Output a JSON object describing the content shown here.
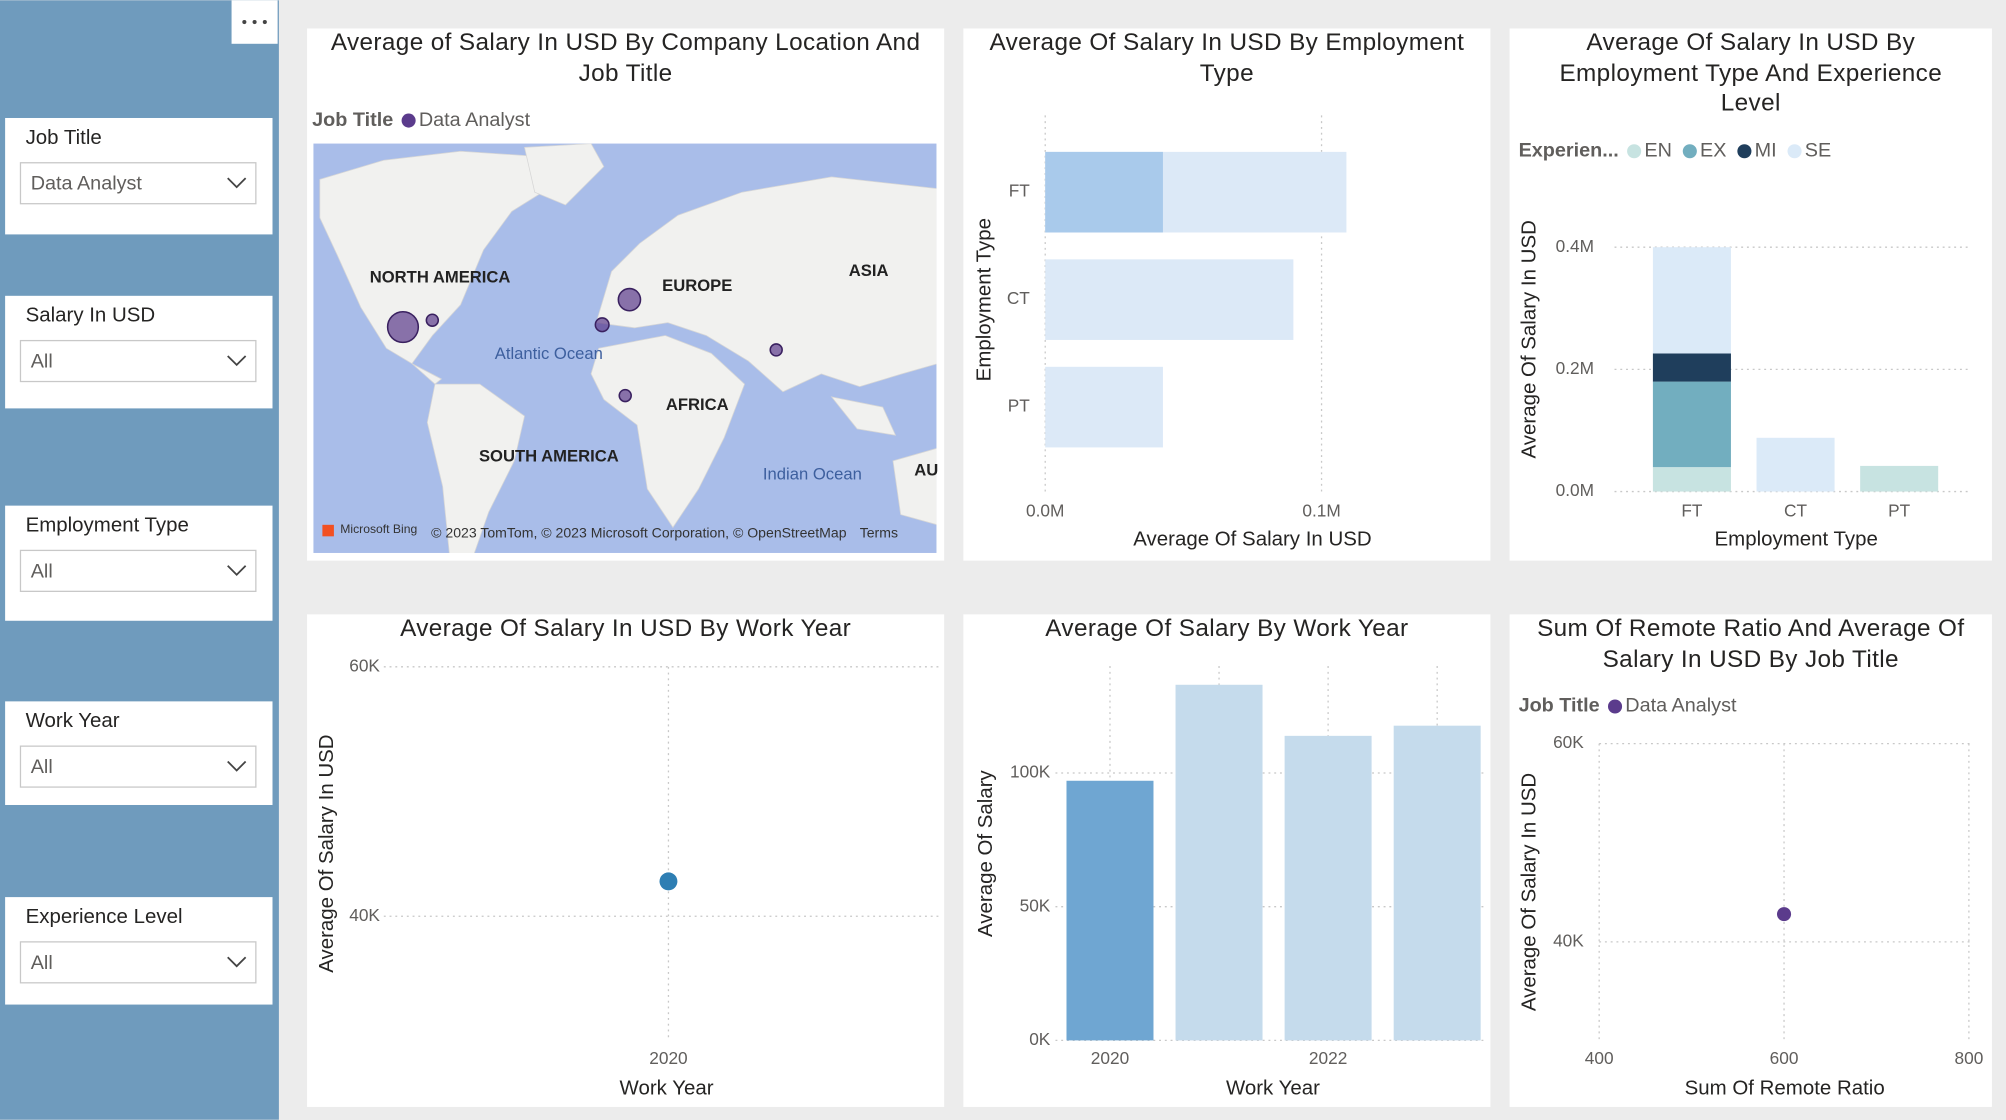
{
  "slicers": [
    {
      "label": "Job Title",
      "value": "Data Analyst"
    },
    {
      "label": "Salary In USD",
      "value": "All"
    },
    {
      "label": "Employment Type",
      "value": "All"
    },
    {
      "label": "Work Year",
      "value": "All"
    },
    {
      "label": "Experience Level",
      "value": "All"
    }
  ],
  "chart_data": [
    {
      "type": "map",
      "title": "Average of Salary In USD By Company Location And Job Title",
      "legend_title": "Job Title",
      "series": [
        {
          "name": "Data Analyst",
          "color": "#5b3b8c",
          "lon": [
            -98,
            -84,
            -3,
            10,
            8,
            80
          ],
          "lat": [
            39,
            42,
            40,
            51,
            9,
            29
          ],
          "values": [
            90000,
            35000,
            40000,
            65000,
            35000,
            35000
          ]
        }
      ],
      "map_labels": [
        "NORTH AMERICA",
        "EUROPE",
        "ASIA",
        "Atlantic Ocean",
        "AFRICA",
        "SOUTH AMERICA",
        "Indian Ocean",
        "AU"
      ],
      "attribution": [
        "Microsoft Bing",
        "© 2023 TomTom, © 2023 Microsoft Corporation, © OpenStreetMap",
        "Terms"
      ]
    },
    {
      "type": "hbar",
      "title": "Average Of Salary In USD By Employment Type",
      "categories": [
        "FT",
        "CT",
        "PT"
      ],
      "values": [
        109000,
        89800,
        42600
      ],
      "highlight_values": [
        42600,
        null,
        null
      ],
      "color": "#dce9f7",
      "highlight_color": "#a9caeb",
      "xlim": [
        0,
        150000
      ],
      "xticks": [
        {
          "value": 0,
          "label": "0.0M"
        },
        {
          "value": 100000,
          "label": "0.1M"
        }
      ],
      "xlabel": "Average Of Salary In USD",
      "ylabel": "Employment Type",
      "grid": true
    },
    {
      "type": "stacked_bar",
      "title": "Average Of Salary In USD By Employment Type And Experience Level",
      "legend_title": "Experien...",
      "categories": [
        "FT",
        "CT",
        "PT"
      ],
      "series": [
        {
          "name": "EN",
          "color": "#c7e3e1",
          "values": [
            40000,
            null,
            42000
          ]
        },
        {
          "name": "EX",
          "color": "#72aebf",
          "values": [
            140000,
            null,
            null
          ]
        },
        {
          "name": "MI",
          "color": "#1f3e5c",
          "values": [
            46000,
            null,
            null
          ]
        },
        {
          "name": "SE",
          "color": "#dbeaf8",
          "values": [
            174000,
            88000,
            null
          ]
        }
      ],
      "ylim": [
        0,
        400000
      ],
      "yticks": [
        {
          "value": 0,
          "label": "0.0M"
        },
        {
          "value": 200000,
          "label": "0.2M"
        },
        {
          "value": 400000,
          "label": "0.4M"
        }
      ],
      "xlabel": "Employment Type",
      "ylabel": "Average Of Salary In USD",
      "grid": true
    },
    {
      "type": "scatter",
      "title": "Average Of Salary In USD By Work Year",
      "x": [
        2020
      ],
      "values": [
        42800
      ],
      "color": "#2e7eb3",
      "xlim": [
        2019,
        2021
      ],
      "xticks": [
        2020
      ],
      "ylim": [
        30000,
        60000
      ],
      "yticks": [
        {
          "value": 40000,
          "label": "40K"
        },
        {
          "value": 60000,
          "label": "60K"
        }
      ],
      "xlabel": "Work Year",
      "ylabel": "Average Of Salary In USD",
      "grid": true
    },
    {
      "type": "bar",
      "title": "Average Of Salary By Work Year",
      "categories": [
        "2020",
        null,
        "2022",
        null
      ],
      "values": [
        97100,
        133000,
        113900,
        117700
      ],
      "colors": [
        "#6fa6d2",
        "#c5dbec",
        "#c5dbec",
        "#c5dbec"
      ],
      "ylim": [
        0,
        140000
      ],
      "yticks": [
        {
          "value": 0,
          "label": "0K"
        },
        {
          "value": 50000,
          "label": "50K"
        },
        {
          "value": 100000,
          "label": "100K"
        }
      ],
      "xlabel": "Work Year",
      "ylabel": "Average Of Salary",
      "grid": true
    },
    {
      "type": "scatter",
      "title": "Sum Of Remote Ratio And Average Of Salary In USD By Job Title",
      "legend_title": "Job Title",
      "series_name": "Data Analyst",
      "x": [
        600
      ],
      "values": [
        42800
      ],
      "color": "#5b3b8c",
      "xlim": [
        400,
        800
      ],
      "xticks": [
        400,
        600,
        800
      ],
      "ylim": [
        30000,
        60000
      ],
      "yticks": [
        {
          "value": 40000,
          "label": "40K"
        },
        {
          "value": 60000,
          "label": "60K"
        }
      ],
      "xlabel": "Sum Of Remote Ratio",
      "ylabel": "Average Of Salary In USD",
      "grid": true
    }
  ]
}
